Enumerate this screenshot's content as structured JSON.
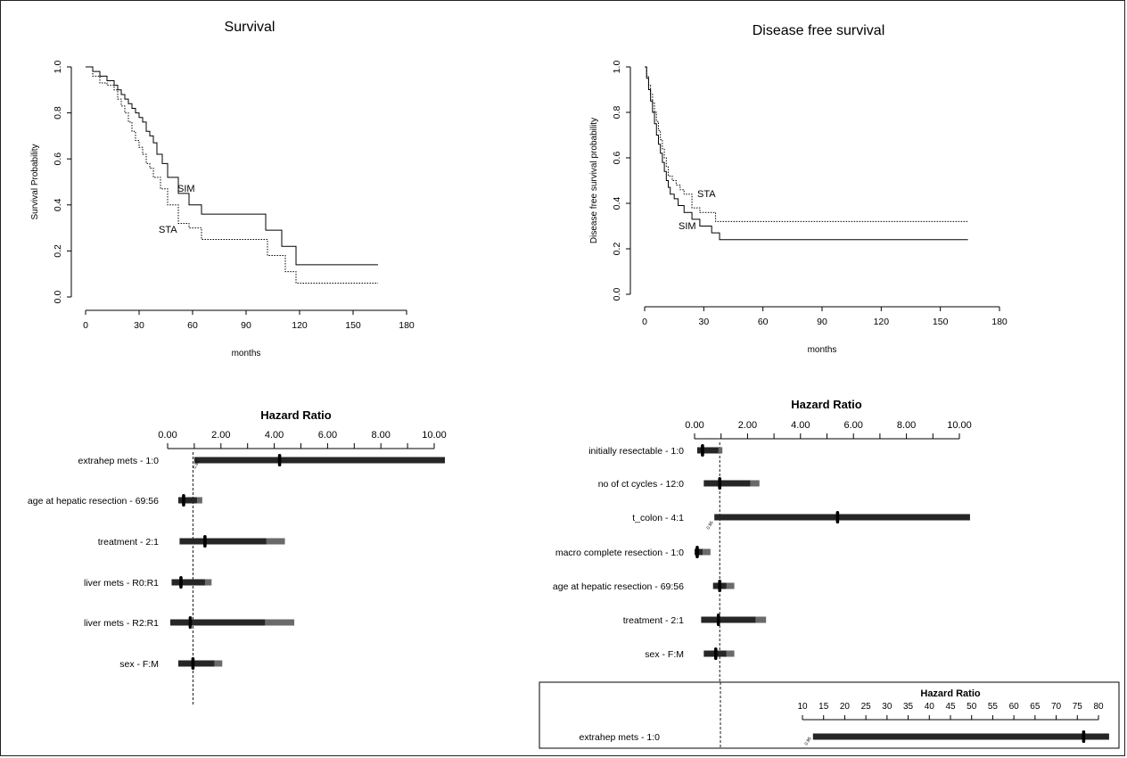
{
  "chart_data": [
    {
      "type": "line",
      "subtype": "kaplan-meier",
      "title": "Survival",
      "xlabel": "months",
      "ylabel": "Survival Probability",
      "xlim": [
        0,
        180
      ],
      "ylim": [
        0,
        1
      ],
      "xticks": [
        0,
        30,
        60,
        90,
        120,
        150,
        180
      ],
      "yticks": [
        0.0,
        0.2,
        0.4,
        0.6,
        0.8,
        1.0
      ],
      "series": [
        {
          "name": "SIM",
          "line_style": "solid",
          "x": [
            0,
            4,
            8,
            12,
            16,
            18,
            20,
            22,
            24,
            26,
            28,
            30,
            32,
            34,
            36,
            38,
            40,
            43,
            46,
            52,
            58,
            65,
            101,
            110,
            118,
            164
          ],
          "y": [
            1.0,
            0.98,
            0.96,
            0.94,
            0.92,
            0.9,
            0.88,
            0.86,
            0.84,
            0.82,
            0.8,
            0.78,
            0.76,
            0.72,
            0.7,
            0.67,
            0.62,
            0.58,
            0.52,
            0.45,
            0.4,
            0.36,
            0.29,
            0.22,
            0.14,
            0.14
          ]
        },
        {
          "name": "STA",
          "line_style": "dotted",
          "x": [
            0,
            4,
            8,
            12,
            16,
            18,
            20,
            22,
            24,
            26,
            28,
            30,
            32,
            34,
            36,
            38,
            42,
            46,
            52,
            58,
            65,
            102,
            112,
            118,
            164
          ],
          "y": [
            1.0,
            0.96,
            0.93,
            0.92,
            0.9,
            0.86,
            0.83,
            0.8,
            0.76,
            0.72,
            0.68,
            0.65,
            0.62,
            0.58,
            0.56,
            0.52,
            0.47,
            0.4,
            0.32,
            0.3,
            0.25,
            0.18,
            0.11,
            0.06,
            0.06
          ]
        }
      ],
      "annotations": [
        "SIM",
        "STA"
      ]
    },
    {
      "type": "line",
      "subtype": "kaplan-meier",
      "title": "Disease free survival",
      "xlabel": "months",
      "ylabel": "Disease free survival probability",
      "xlim": [
        0,
        180
      ],
      "ylim": [
        0,
        1
      ],
      "xticks": [
        0,
        30,
        60,
        90,
        120,
        150,
        180
      ],
      "yticks": [
        0.0,
        0.2,
        0.4,
        0.6,
        0.8,
        1.0
      ],
      "series": [
        {
          "name": "STA",
          "line_style": "dotted",
          "x": [
            0,
            1,
            2,
            3,
            4,
            5,
            6,
            7,
            8,
            9,
            10,
            11,
            12,
            14,
            16,
            18,
            20,
            24,
            28,
            36,
            164
          ],
          "y": [
            1.0,
            0.96,
            0.92,
            0.88,
            0.84,
            0.8,
            0.76,
            0.72,
            0.68,
            0.64,
            0.6,
            0.56,
            0.52,
            0.5,
            0.48,
            0.46,
            0.44,
            0.38,
            0.36,
            0.32,
            0.32
          ]
        },
        {
          "name": "SIM",
          "line_style": "solid",
          "x": [
            0,
            1,
            2,
            3,
            4,
            5,
            6,
            7,
            8,
            9,
            10,
            11,
            12,
            13,
            15,
            17,
            20,
            24,
            28,
            34,
            38,
            164
          ],
          "y": [
            1.0,
            0.95,
            0.9,
            0.85,
            0.8,
            0.75,
            0.7,
            0.66,
            0.62,
            0.58,
            0.54,
            0.5,
            0.47,
            0.44,
            0.42,
            0.39,
            0.36,
            0.33,
            0.3,
            0.27,
            0.24,
            0.24
          ]
        }
      ],
      "annotations": [
        "STA",
        "SIM"
      ]
    },
    {
      "type": "forest",
      "title": "Hazard Ratio",
      "xticks": [
        0.0,
        2.0,
        4.0,
        6.0,
        8.0,
        10.0
      ],
      "xtick_labels": [
        "0.00",
        "2.00",
        "4.00",
        "6.00",
        "8.00",
        "10.00"
      ],
      "xlim": [
        0,
        10
      ],
      "reference_line": 0.95,
      "reference_label": "0.95",
      "rows": [
        {
          "label": "extrahep mets - 1:0",
          "hr": 4.2,
          "lo": 1.0,
          "hi": 10.4,
          "hi_inner": 10.4
        },
        {
          "label": "age at hepatic resection - 69:56",
          "hr": 0.6,
          "lo": 0.4,
          "hi": 1.3,
          "hi_inner": 1.1
        },
        {
          "label": "treatment - 2:1",
          "hr": 1.4,
          "lo": 0.45,
          "hi": 4.4,
          "hi_inner": 3.7
        },
        {
          "label": "liver mets - R0:R1",
          "hr": 0.5,
          "lo": 0.15,
          "hi": 1.65,
          "hi_inner": 1.4
        },
        {
          "label": "liver mets - R2:R1",
          "hr": 0.85,
          "lo": 0.1,
          "hi": 4.75,
          "hi_inner": 3.65
        },
        {
          "label": "sex - F:M",
          "hr": 0.95,
          "lo": 0.4,
          "hi": 2.05,
          "hi_inner": 1.75
        }
      ]
    },
    {
      "type": "forest",
      "title": "Hazard Ratio",
      "xticks": [
        0.0,
        2.0,
        4.0,
        6.0,
        8.0,
        10.0
      ],
      "xtick_labels": [
        "0.00",
        "2.00",
        "4.00",
        "6.00",
        "8.00",
        "10.00"
      ],
      "xlim": [
        0,
        10
      ],
      "reference_line": 0.95,
      "reference_label": "0.95",
      "rows": [
        {
          "label": "initially resectable - 1:0",
          "hr": 0.3,
          "lo": 0.1,
          "hi": 1.05,
          "hi_inner": 0.9
        },
        {
          "label": "no of ct cycles - 12:0",
          "hr": 0.95,
          "lo": 0.35,
          "hi": 2.45,
          "hi_inner": 2.1
        },
        {
          "label": "t_colon - 4:1",
          "hr": 5.4,
          "lo": 0.75,
          "hi": 10.4,
          "hi_inner": 10.4
        },
        {
          "label": "macro complete resection - 1:0",
          "hr": 0.1,
          "lo": 0.0,
          "hi": 0.6,
          "hi_inner": 0.3
        },
        {
          "label": "age at hepatic resection - 69:56",
          "hr": 0.95,
          "lo": 0.7,
          "hi": 1.5,
          "hi_inner": 1.2
        },
        {
          "label": "treatment - 2:1",
          "hr": 0.9,
          "lo": 0.25,
          "hi": 2.7,
          "hi_inner": 2.3
        },
        {
          "label": "sex - F:M",
          "hr": 0.8,
          "lo": 0.35,
          "hi": 1.5,
          "hi_inner": 1.2
        }
      ]
    },
    {
      "type": "forest",
      "title": "Hazard Ratio",
      "xticks": [
        10,
        15,
        20,
        25,
        30,
        35,
        40,
        45,
        50,
        55,
        60,
        65,
        70,
        75,
        80
      ],
      "xtick_labels": [
        "10",
        "15",
        "20",
        "25",
        "30",
        "35",
        "40",
        "45",
        "50",
        "55",
        "60",
        "65",
        "70",
        "75",
        "80"
      ],
      "xlim": [
        10,
        80
      ],
      "reference_label": "0.95",
      "rows": [
        {
          "label": "extrahep mets - 1:0",
          "hr": 76.5,
          "lo": 12.5,
          "hi": 82.5,
          "hi_inner": 82.5
        }
      ]
    }
  ]
}
